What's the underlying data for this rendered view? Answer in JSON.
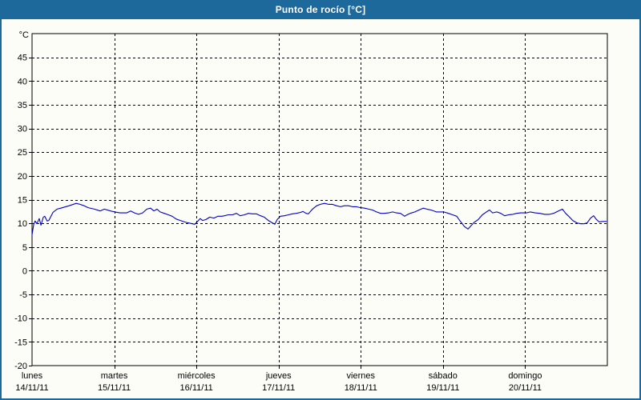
{
  "window": {
    "title": "Punto de rocío [°C]"
  },
  "colors": {
    "frame_and_titlebar": "#1e699c",
    "title_text": "#ffffff",
    "background": "#fdfdf8",
    "plot_border": "#000000",
    "grid": "#000000",
    "axis_text": "#000000",
    "series_line": "#0000c8"
  },
  "chart_data": {
    "type": "line",
    "title": "Punto de rocío [°C]",
    "y_unit_label": "°C",
    "ylim": [
      -20,
      50
    ],
    "ytick_step": 5,
    "ytick_labels": [
      "45",
      "40",
      "35",
      "30",
      "25",
      "20",
      "15",
      "10",
      "5",
      "0",
      "-5",
      "-10",
      "-15",
      "-20"
    ],
    "xlim_hours": [
      0,
      168
    ],
    "grid_style": "dashed",
    "legend": "none",
    "x_days": [
      {
        "name": "lunes",
        "date": "14/11/11"
      },
      {
        "name": "martes",
        "date": "15/11/11"
      },
      {
        "name": "miércoles",
        "date": "16/11/11"
      },
      {
        "name": "jueves",
        "date": "17/11/11"
      },
      {
        "name": "viernes",
        "date": "18/11/11"
      },
      {
        "name": "sábado",
        "date": "19/11/11"
      },
      {
        "name": "domingo",
        "date": "20/11/11"
      }
    ],
    "series": [
      {
        "name": "Punto de rocío",
        "color": "#0000c8",
        "points": [
          [
            0,
            7.6
          ],
          [
            0.5,
            9.8
          ],
          [
            0.9,
            10.5
          ],
          [
            1.4,
            9.9
          ],
          [
            2.1,
            11.0
          ],
          [
            2.6,
            9.6
          ],
          [
            3.3,
            11.3
          ],
          [
            3.7,
            11.5
          ],
          [
            4.4,
            10.5
          ],
          [
            4.9,
            10.6
          ],
          [
            6.1,
            12.3
          ],
          [
            7.3,
            13.0
          ],
          [
            8.4,
            13.2
          ],
          [
            10.8,
            13.7
          ],
          [
            12.9,
            14.2
          ],
          [
            14.0,
            14.0
          ],
          [
            15.2,
            13.7
          ],
          [
            16.4,
            13.3
          ],
          [
            18.2,
            13.0
          ],
          [
            19.9,
            12.6
          ],
          [
            21.1,
            13.0
          ],
          [
            22.9,
            12.6
          ],
          [
            24.1,
            12.4
          ],
          [
            25.7,
            12.2
          ],
          [
            27.6,
            12.2
          ],
          [
            28.8,
            12.6
          ],
          [
            29.9,
            12.2
          ],
          [
            31.1,
            11.9
          ],
          [
            32.3,
            12.2
          ],
          [
            33.5,
            13.0
          ],
          [
            34.6,
            13.2
          ],
          [
            35.6,
            12.6
          ],
          [
            36.5,
            13.0
          ],
          [
            37.4,
            12.4
          ],
          [
            38.6,
            12.1
          ],
          [
            39.8,
            11.8
          ],
          [
            40.9,
            11.5
          ],
          [
            42.1,
            10.9
          ],
          [
            43.3,
            10.6
          ],
          [
            44.5,
            10.3
          ],
          [
            45.6,
            10.1
          ],
          [
            46.8,
            9.9
          ],
          [
            47.5,
            9.8
          ],
          [
            48.2,
            10.3
          ],
          [
            49.1,
            11.0
          ],
          [
            49.8,
            10.6
          ],
          [
            50.8,
            10.8
          ],
          [
            51.9,
            11.3
          ],
          [
            53.1,
            11.1
          ],
          [
            54.3,
            11.5
          ],
          [
            55.4,
            11.5
          ],
          [
            56.2,
            11.6
          ],
          [
            57.3,
            11.8
          ],
          [
            58.5,
            11.8
          ],
          [
            59.7,
            12.1
          ],
          [
            60.8,
            11.6
          ],
          [
            62.0,
            11.8
          ],
          [
            63.2,
            12.1
          ],
          [
            64.3,
            12.0
          ],
          [
            65.5,
            12.0
          ],
          [
            66.7,
            11.6
          ],
          [
            67.8,
            11.3
          ],
          [
            69.0,
            10.6
          ],
          [
            70.2,
            10.1
          ],
          [
            70.9,
            9.8
          ],
          [
            71.6,
            10.8
          ],
          [
            72.5,
            11.5
          ],
          [
            73.7,
            11.6
          ],
          [
            74.9,
            11.8
          ],
          [
            76.0,
            12.0
          ],
          [
            77.2,
            12.1
          ],
          [
            78.4,
            12.3
          ],
          [
            79.1,
            12.5
          ],
          [
            80.0,
            12.1
          ],
          [
            80.7,
            12.0
          ],
          [
            81.9,
            13.0
          ],
          [
            83.1,
            13.7
          ],
          [
            84.2,
            14.0
          ],
          [
            85.4,
            14.2
          ],
          [
            86.6,
            14.0
          ],
          [
            87.7,
            14.0
          ],
          [
            88.9,
            13.7
          ],
          [
            90.1,
            13.5
          ],
          [
            91.2,
            13.7
          ],
          [
            92.4,
            13.7
          ],
          [
            93.6,
            13.5
          ],
          [
            94.7,
            13.5
          ],
          [
            95.9,
            13.3
          ],
          [
            97.1,
            13.2
          ],
          [
            98.3,
            13.0
          ],
          [
            99.4,
            12.8
          ],
          [
            100.6,
            12.4
          ],
          [
            101.8,
            12.1
          ],
          [
            102.9,
            12.1
          ],
          [
            104.1,
            12.2
          ],
          [
            105.3,
            12.4
          ],
          [
            106.4,
            12.2
          ],
          [
            107.6,
            12.1
          ],
          [
            108.8,
            11.5
          ],
          [
            109.5,
            11.8
          ],
          [
            110.4,
            12.1
          ],
          [
            111.8,
            12.4
          ],
          [
            113.0,
            12.8
          ],
          [
            114.2,
            13.2
          ],
          [
            115.3,
            13.0
          ],
          [
            116.5,
            12.8
          ],
          [
            118.1,
            12.4
          ],
          [
            119.3,
            12.4
          ],
          [
            120.2,
            12.4
          ],
          [
            121.6,
            12.1
          ],
          [
            122.8,
            11.8
          ],
          [
            124.0,
            11.5
          ],
          [
            125.2,
            10.3
          ],
          [
            126.3,
            9.3
          ],
          [
            127.3,
            8.8
          ],
          [
            128.2,
            9.5
          ],
          [
            129.1,
            10.2
          ],
          [
            130.3,
            10.8
          ],
          [
            131.5,
            11.8
          ],
          [
            132.7,
            12.4
          ],
          [
            133.6,
            12.8
          ],
          [
            134.5,
            12.2
          ],
          [
            135.7,
            12.4
          ],
          [
            136.9,
            12.1
          ],
          [
            138.0,
            11.6
          ],
          [
            139.2,
            11.8
          ],
          [
            140.4,
            11.9
          ],
          [
            141.5,
            12.1
          ],
          [
            142.7,
            12.2
          ],
          [
            144.4,
            12.2
          ],
          [
            145.5,
            12.4
          ],
          [
            146.9,
            12.2
          ],
          [
            148.3,
            12.1
          ],
          [
            149.7,
            11.9
          ],
          [
            151.1,
            11.9
          ],
          [
            152.3,
            12.1
          ],
          [
            153.7,
            12.6
          ],
          [
            154.9,
            13.0
          ],
          [
            155.8,
            12.1
          ],
          [
            156.7,
            11.5
          ],
          [
            157.9,
            10.6
          ],
          [
            159.1,
            10.1
          ],
          [
            160.2,
            9.9
          ],
          [
            161.2,
            9.9
          ],
          [
            162.1,
            10.1
          ],
          [
            163.1,
            11.1
          ],
          [
            164.0,
            11.6
          ],
          [
            164.7,
            10.9
          ],
          [
            165.6,
            10.3
          ],
          [
            166.6,
            10.4
          ],
          [
            167.7,
            10.4
          ]
        ]
      }
    ]
  }
}
